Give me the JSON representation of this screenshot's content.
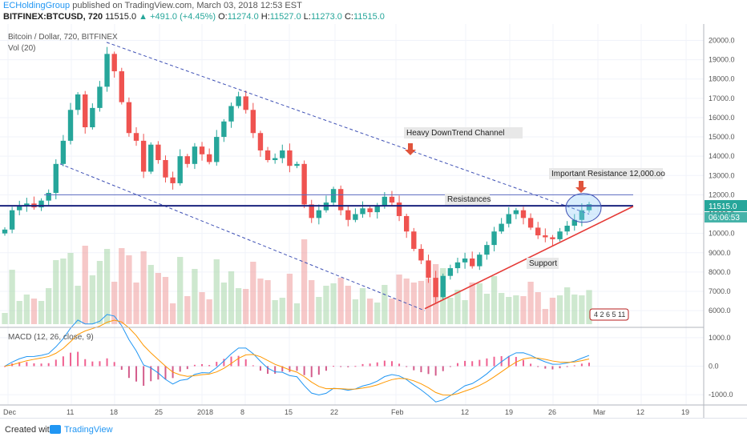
{
  "header": {
    "author": "ECHoldingGroup",
    "published": "published on TradingView.com, March 03, 2018 12:53 EST",
    "symbol": "BITFINEX:BTCUSD, 720",
    "last": "11515.0",
    "change": "▲ +491.0 (+4.45%)",
    "o_label": "O:",
    "o": "11274.0",
    "h_label": "H:",
    "h": "11527.0",
    "l_label": "L:",
    "l": "11273.0",
    "c_label": "C:",
    "c": "11515.0"
  },
  "legend": {
    "symbol": "Bitcoin / Dollar, 720, BITFINEX",
    "volume": "Vol (20)",
    "macd": "MACD (12, 26, close, 9)"
  },
  "price_badge": "11515.0",
  "countdown_badge": "06:06:53",
  "events_badge": "4 2 6 5 11",
  "footer": {
    "created_with": "Created with",
    "brand": "TradingView"
  },
  "colors": {
    "up": "#26a69a",
    "down": "#ef5350",
    "channel": "#3f51b5",
    "resistance": "#1a237e",
    "support": "#e53935",
    "macd": "#2196f3",
    "signal": "#ff9800"
  },
  "annotations": [
    {
      "text": "Heavy DownTrend Channel"
    },
    {
      "text": "Important Resistance 12,000.oo"
    },
    {
      "text": "Resistances"
    },
    {
      "text": "Support"
    }
  ],
  "chart_data": [
    {
      "type": "candlestick",
      "title": "Bitcoin / Dollar, 720, BITFINEX",
      "y_ticks": [
        6000.0,
        7000.0,
        8000.0,
        9000.0,
        10000.0,
        11000.0,
        12000.0,
        13000.0,
        14000.0,
        15000.0,
        16000.0,
        17000.0,
        18000.0,
        19000.0,
        20000.0
      ],
      "x_ticks": [
        "Dec",
        "11",
        "18",
        "25",
        "2018",
        "8",
        "15",
        "22",
        "Feb",
        "12",
        "19",
        "26",
        "Mar",
        "12",
        "19"
      ],
      "ylim": [
        5300,
        20600
      ],
      "closes": [
        10200,
        11200,
        11450,
        11550,
        11350,
        11700,
        12100,
        13600,
        14800,
        16400,
        17200,
        15500,
        16500,
        17600,
        19300,
        18400,
        16800,
        15200,
        14800,
        13200,
        14600,
        13800,
        12900,
        12600,
        14000,
        13600,
        14500,
        14100,
        13700,
        15000,
        15800,
        16600,
        17100,
        16400,
        15200,
        14300,
        13800,
        13900,
        14300,
        13500,
        13600,
        11500,
        10800,
        11200,
        11600,
        12300,
        11200,
        10700,
        11000,
        11300,
        11100,
        11400,
        11900,
        11600,
        10900,
        10100,
        9200,
        8600,
        7700,
        6700,
        7800,
        8200,
        8500,
        8700,
        8300,
        8900,
        9400,
        10100,
        10500,
        11000,
        11200,
        10800,
        10300,
        9900,
        9800,
        9700,
        10100,
        10400,
        10700,
        11200,
        11515
      ],
      "last": 11515.0
    },
    {
      "type": "bar",
      "title": "Vol (20)"
    },
    {
      "type": "line",
      "title": "MACD (12, 26, close, 9)",
      "y_ticks": [
        -1000.0,
        0.0,
        1000.0
      ],
      "ylim": [
        -1250,
        1250
      ]
    }
  ]
}
